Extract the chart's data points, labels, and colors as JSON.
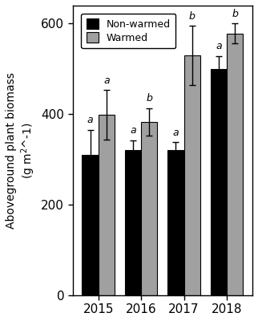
{
  "years": [
    "2015",
    "2016",
    "2017",
    "2018"
  ],
  "non_warmed_values": [
    310,
    320,
    320,
    500
  ],
  "warmed_values": [
    398,
    383,
    530,
    578
  ],
  "non_warmed_errors": [
    55,
    22,
    18,
    28
  ],
  "warmed_errors": [
    55,
    30,
    65,
    22
  ],
  "non_warmed_color": "#000000",
  "warmed_color": "#a0a0a0",
  "bar_width": 0.38,
  "ylabel": "Aboveground plant biomass\n(g m²^-1)",
  "ylim": [
    0,
    640
  ],
  "yticks": [
    0,
    200,
    400,
    600
  ],
  "legend_labels": [
    "Non-warmed",
    "Warmed"
  ],
  "significance_non_warmed": [
    "a",
    "a",
    "a",
    "a"
  ],
  "significance_warmed": [
    "a",
    "b",
    "b",
    "b"
  ],
  "background_color": "#ffffff",
  "edge_color": "#000000"
}
